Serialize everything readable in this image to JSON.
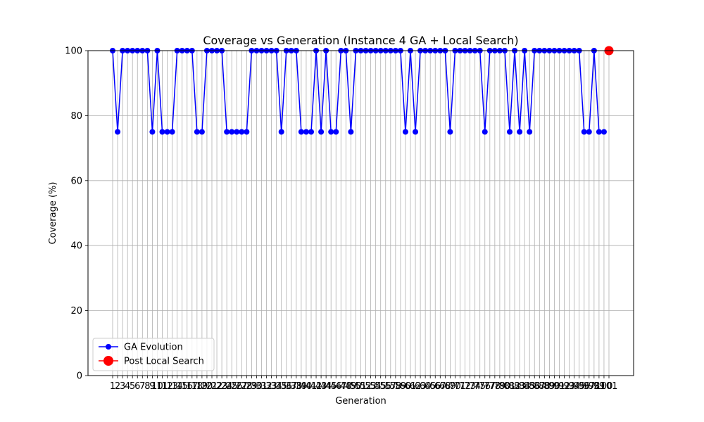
{
  "chart_data": {
    "type": "line",
    "title": "Coverage vs Generation (Instance 4 GA + Local Search)",
    "xlabel": "Generation",
    "ylabel": "Coverage (%)",
    "ylim": [
      0,
      100
    ],
    "yticks": [
      0,
      20,
      40,
      60,
      80,
      100
    ],
    "grid": true,
    "legend_position": "lower-left",
    "x": [
      1,
      2,
      3,
      4,
      5,
      6,
      7,
      8,
      9,
      10,
      11,
      12,
      13,
      14,
      15,
      16,
      17,
      18,
      19,
      20,
      21,
      22,
      23,
      24,
      25,
      26,
      27,
      28,
      29,
      30,
      31,
      32,
      33,
      34,
      35,
      36,
      37,
      38,
      39,
      40,
      41,
      42,
      43,
      44,
      45,
      46,
      47,
      48,
      49,
      50,
      51,
      52,
      53,
      54,
      55,
      56,
      57,
      58,
      59,
      60,
      61,
      62,
      63,
      64,
      65,
      66,
      67,
      68,
      69,
      70,
      71,
      72,
      73,
      74,
      75,
      76,
      77,
      78,
      79,
      80,
      81,
      82,
      83,
      84,
      85,
      86,
      87,
      88,
      89,
      90,
      91,
      92,
      93,
      94,
      95,
      96,
      97,
      98,
      99,
      100
    ],
    "series": [
      {
        "name": "GA Evolution",
        "color": "#0000ff",
        "marker": "circle",
        "values": [
          100,
          75,
          100,
          100,
          100,
          100,
          100,
          100,
          75,
          100,
          75,
          75,
          75,
          100,
          100,
          100,
          100,
          75,
          75,
          100,
          100,
          100,
          100,
          75,
          75,
          75,
          75,
          75,
          100,
          100,
          100,
          100,
          100,
          100,
          75,
          100,
          100,
          100,
          75,
          75,
          75,
          100,
          75,
          100,
          75,
          75,
          100,
          100,
          75,
          100,
          100,
          100,
          100,
          100,
          100,
          100,
          100,
          100,
          100,
          75,
          100,
          75,
          100,
          100,
          100,
          100,
          100,
          100,
          75,
          100,
          100,
          100,
          100,
          100,
          100,
          75,
          100,
          100,
          100,
          100,
          75,
          100,
          75,
          100,
          75,
          100,
          100,
          100,
          100,
          100,
          100,
          100,
          100,
          100,
          100,
          75,
          75,
          100,
          75,
          75
        ]
      },
      {
        "name": "Post Local Search",
        "color": "#ff0000",
        "marker": "large-circle",
        "points": [
          {
            "x": 101,
            "y": 100
          }
        ]
      }
    ],
    "xtick_labels": [
      "1",
      "2",
      "3",
      "4",
      "5",
      "6",
      "7",
      "8",
      "9",
      "10",
      "11",
      "12",
      "13",
      "14",
      "15",
      "16",
      "17",
      "18",
      "19",
      "20",
      "21",
      "22",
      "23",
      "24",
      "25",
      "26",
      "27",
      "28",
      "29",
      "30",
      "31",
      "32",
      "33",
      "34",
      "35",
      "36",
      "37",
      "38",
      "39",
      "40",
      "41",
      "42",
      "43",
      "44",
      "45",
      "46",
      "47",
      "48",
      "49",
      "50",
      "51",
      "52",
      "53",
      "54",
      "55",
      "56",
      "57",
      "58",
      "59",
      "60",
      "61",
      "62",
      "63",
      "64",
      "65",
      "66",
      "67",
      "68",
      "69",
      "70",
      "71",
      "72",
      "73",
      "74",
      "75",
      "76",
      "77",
      "78",
      "79",
      "80",
      "81",
      "82",
      "83",
      "84",
      "85",
      "86",
      "87",
      "88",
      "89",
      "90",
      "91",
      "92",
      "93",
      "94",
      "95",
      "96",
      "97",
      "98",
      "99",
      "100",
      "101"
    ]
  }
}
